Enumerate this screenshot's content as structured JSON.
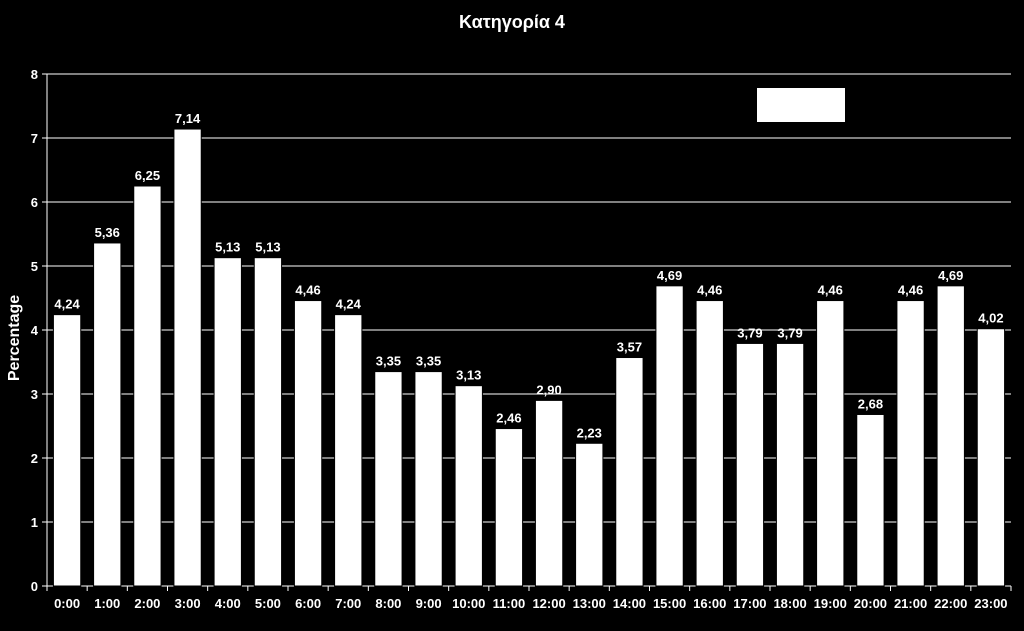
{
  "chart_data": {
    "type": "bar",
    "title": "Κατηγορία 4",
    "xlabel": "",
    "ylabel": "Percentage",
    "ylim": [
      0,
      8
    ],
    "yticks": [
      "0",
      "1",
      "2",
      "3",
      "4",
      "5",
      "6",
      "7",
      "8"
    ],
    "grid": true,
    "legend": "top-right",
    "categories": [
      "0:00",
      "1:00",
      "2:00",
      "3:00",
      "4:00",
      "5:00",
      "6:00",
      "7:00",
      "8:00",
      "9:00",
      "10:00",
      "11:00",
      "12:00",
      "13:00",
      "14:00",
      "15:00",
      "16:00",
      "17:00",
      "18:00",
      "19:00",
      "20:00",
      "21:00",
      "22:00",
      "23:00"
    ],
    "values": [
      4.24,
      5.36,
      6.25,
      7.14,
      5.13,
      5.13,
      4.46,
      4.24,
      3.35,
      3.35,
      3.13,
      2.46,
      2.9,
      2.23,
      3.57,
      4.69,
      4.46,
      3.79,
      3.79,
      4.46,
      2.68,
      4.46,
      4.69,
      4.02
    ],
    "data_labels": [
      "4,24",
      "5,36",
      "6,25",
      "7,14",
      "5,13",
      "5,13",
      "4,46",
      "4,24",
      "3,35",
      "3,35",
      "3,13",
      "2,46",
      "2,90",
      "2,23",
      "3,57",
      "4,69",
      "4,46",
      "3,79",
      "3,79",
      "4,46",
      "2,68",
      "4,46",
      "4,69",
      "4,02"
    ],
    "colors": {
      "background": "#000000",
      "bar": "#ffffff",
      "bar_stroke": "#000000",
      "grid": "#ffffff",
      "text": "#ffffff",
      "legend_box": "#ffffff"
    }
  }
}
